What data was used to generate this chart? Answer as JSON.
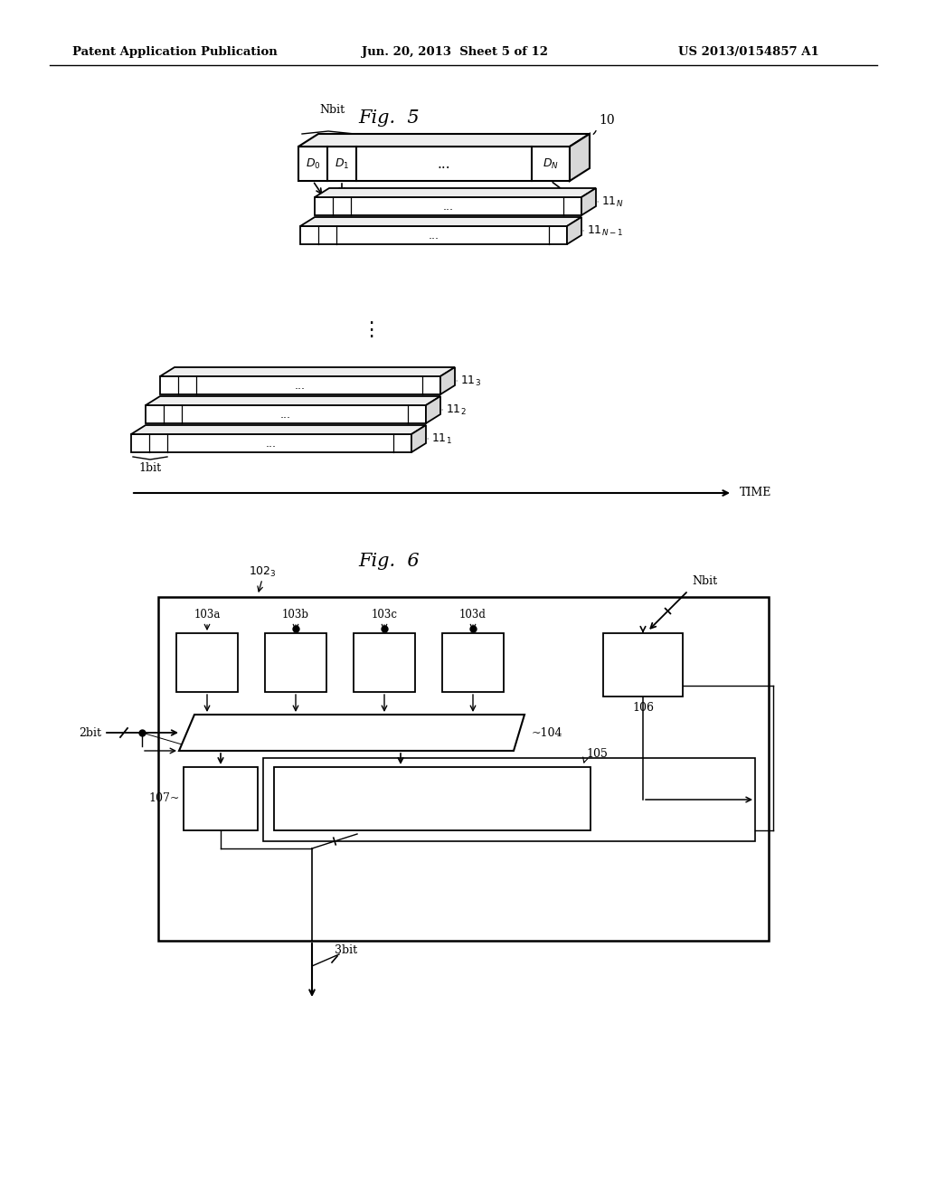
{
  "bg_color": "#ffffff",
  "header_left": "Patent Application Publication",
  "header_mid": "Jun. 20, 2013  Sheet 5 of 12",
  "header_right": "US 2013/0154857 A1",
  "fig5_title": "Fig.  5",
  "fig6_title": "Fig.  6"
}
